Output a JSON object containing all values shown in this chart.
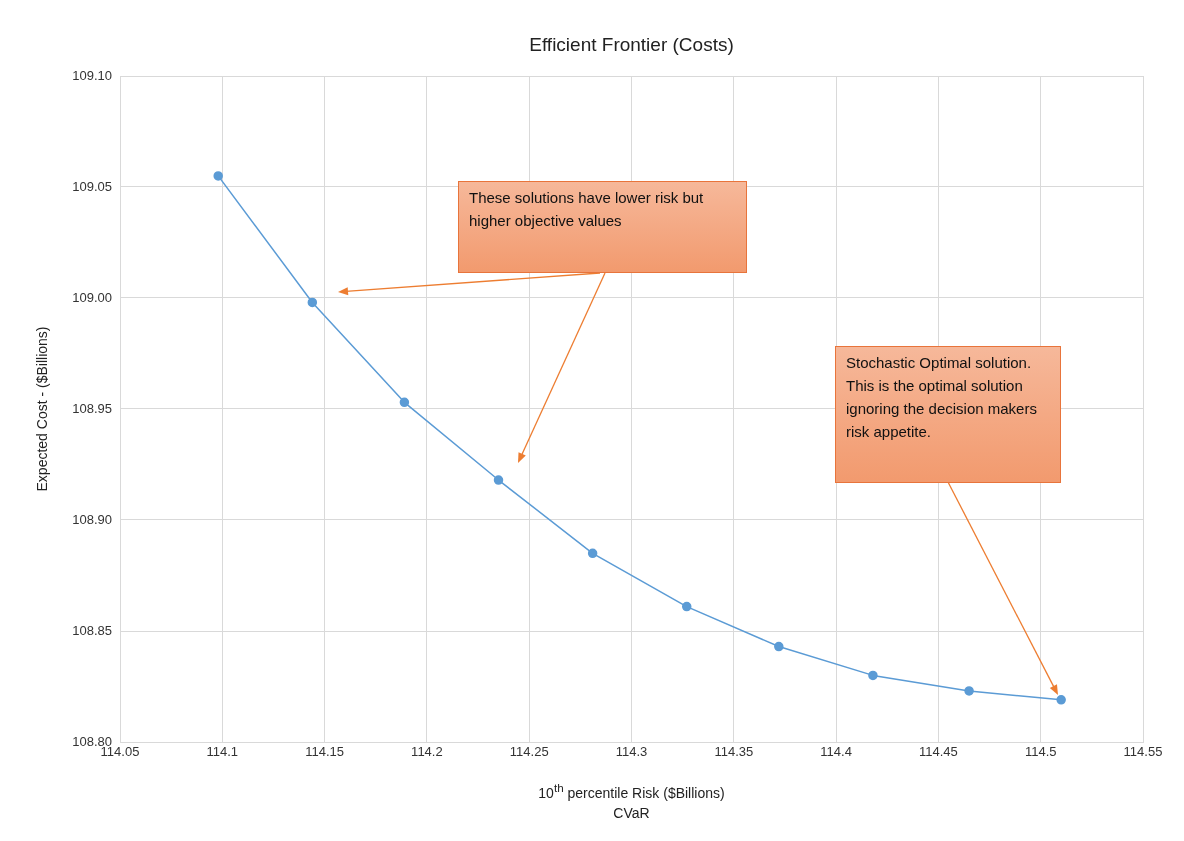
{
  "chart_data": {
    "type": "line",
    "title": "Efficient Frontier (Costs)",
    "xlabel": "10$^{th}$ percentile Risk ($Billions)\nCVaR",
    "ylabel": "Expected Cost - ($Billions)",
    "x": [
      114.098,
      114.144,
      114.189,
      114.235,
      114.281,
      114.327,
      114.372,
      114.418,
      114.465,
      114.51
    ],
    "series": [
      {
        "color": "#5b9bd5",
        "values": [
          109.055,
          108.998,
          108.953,
          108.918,
          108.885,
          108.861,
          108.843,
          108.83,
          108.823,
          108.819
        ]
      }
    ],
    "xlim": [
      114.05,
      114.55
    ],
    "xticks": [
      114.05,
      114.1,
      114.15,
      114.2,
      114.25,
      114.3,
      114.35,
      114.4,
      114.45,
      114.5,
      114.55
    ],
    "ylim": [
      108.8,
      109.1
    ],
    "yticks": [
      {
        "value": 108.8,
        "label": "108.80"
      },
      {
        "value": 108.85,
        "label": "108.85"
      },
      {
        "value": 108.9,
        "label": "108.90"
      },
      {
        "value": 108.95,
        "label": "108.95"
      },
      {
        "value": 109.0,
        "label": "109.00"
      },
      {
        "value": 109.05,
        "label": "109.05"
      },
      {
        "value": 109.1,
        "label": "109.10"
      }
    ],
    "grid": true,
    "legend": false,
    "marker": "circle",
    "line_style": "solid",
    "annotations": [
      "These solutions have lower risk but higher objective values",
      "Stochastic Optimal solution. This is the optimal solution ignoring the decision makers risk appetite."
    ]
  }
}
